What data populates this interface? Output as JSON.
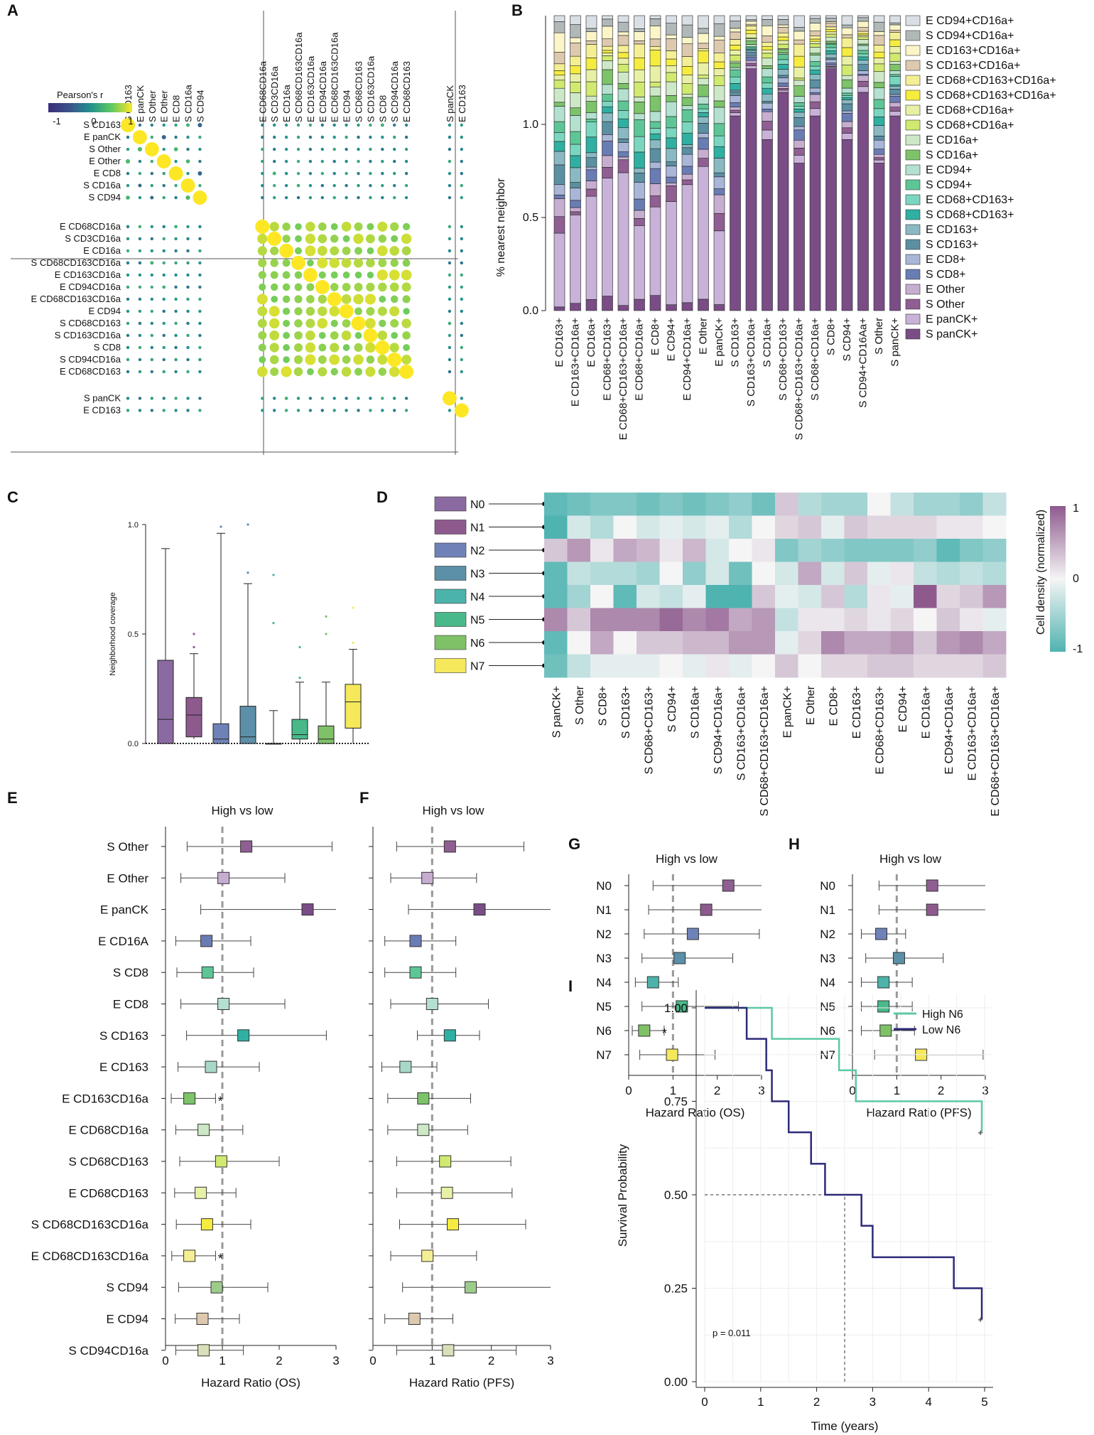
{
  "chart_data": [
    {
      "panel": "A",
      "type": "heatmap",
      "title": "Pearson's r",
      "colorbar": {
        "min": -1,
        "mid": 0,
        "max": 1,
        "tick_labels": [
          "-1",
          "0",
          "1"
        ]
      },
      "rows": [
        "S CD163",
        "E panCK",
        "S Other",
        "E Other",
        "E CD8",
        "S CD16a",
        "S CD94",
        "E CD68CD16a",
        "S CD3CD16a",
        "E CD16a",
        "S CD68CD163CD16a",
        "E CD163CD16a",
        "E CD94CD16a",
        "E CD68CD163CD16a",
        "E CD94",
        "S CD68CD163",
        "S CD163CD16a",
        "S CD8",
        "S CD94CD16a",
        "E CD68CD163",
        "S panCK",
        "E CD163"
      ],
      "columns": [
        "S CD163",
        "E panCK",
        "S Other",
        "E Other",
        "E CD8",
        "S CD16a",
        "S CD94",
        "E CD68CD16a",
        "S CD3CD16a",
        "E CD16a",
        "S CD68CD163CD16a",
        "E CD163CD16a",
        "E CD94CD16a",
        "E CD68CD163CD16a",
        "E CD94",
        "S CD68CD163",
        "S CD163CD16a",
        "S CD8",
        "S CD94CD16a",
        "E CD68CD163",
        "S panCK",
        "E CD163"
      ],
      "note": "Dot-matrix correlation; diagonal r = 1, block of macrophage/CD16a subsets strongly positively correlated"
    },
    {
      "panel": "B",
      "type": "bar",
      "stacked": true,
      "ylabel": "% nearest neighbor",
      "y_ticks": [
        "0.0",
        "0.5",
        "1.0"
      ],
      "categories": [
        "E CD163+",
        "E CD163+CD16a+",
        "E CD16a+",
        "E CD68+CD163+",
        "E CD68+CD163+CD16a+",
        "E CD68+CD16a+",
        "E CD8+",
        "E CD94+",
        "E CD94+CD16a+",
        "E Other",
        "E panCK+",
        "S CD163+",
        "S CD163+CD16a+",
        "S CD16a+",
        "S CD68+CD163+",
        "S CD68+CD163+CD16a+",
        "S CD68+CD16a+",
        "S CD8+",
        "S CD94+",
        "S CD94+CD16Aa+",
        "S Other",
        "S panCK+"
      ],
      "legend": [
        "E CD94+CD16a+",
        "S CD94+CD16a+",
        "E CD163+CD16a+",
        "S CD163+CD16a+",
        "E CD68+CD163+CD16a+",
        "S CD68+CD163+CD16a+",
        "E CD68+CD16a+",
        "S CD68+CD16a+",
        "E CD16a+",
        "S CD16a+",
        "E CD94+",
        "S CD94+",
        "E CD68+CD163+",
        "S CD68+CD163+",
        "E CD163+",
        "S CD163+",
        "E CD8+",
        "S CD8+",
        "E Other",
        "S Other",
        "E panCK+",
        "S panCK+"
      ]
    },
    {
      "panel": "C",
      "type": "box",
      "ylabel": "Neighborhood coverage",
      "y_ticks": [
        "0.0",
        "0.5",
        "1.0"
      ],
      "categories": [
        "N0",
        "N1",
        "N2",
        "N3",
        "N4",
        "N5",
        "N6",
        "N7"
      ],
      "boxes": [
        {
          "min": 0.0,
          "q1": 0.0,
          "median": 0.11,
          "q3": 0.38,
          "max": 0.89,
          "outliers": []
        },
        {
          "min": 0.02,
          "q1": 0.03,
          "median": 0.13,
          "q3": 0.21,
          "max": 0.41,
          "outliers": [
            0.44,
            0.5
          ]
        },
        {
          "min": 0.0,
          "q1": 0.0,
          "median": 0.02,
          "q3": 0.09,
          "max": 0.96,
          "outliers": [
            0.99
          ]
        },
        {
          "min": 0.0,
          "q1": 0.0,
          "median": 0.03,
          "q3": 0.17,
          "max": 0.73,
          "outliers": [
            0.78,
            1.0
          ]
        },
        {
          "min": 0.0,
          "q1": 0.0,
          "median": 0.0,
          "q3": 0.0,
          "max": 0.15,
          "outliers": [
            0.55,
            0.77
          ]
        },
        {
          "min": 0.0,
          "q1": 0.02,
          "median": 0.04,
          "q3": 0.11,
          "max": 0.28,
          "outliers": [
            0.3,
            0.44
          ]
        },
        {
          "min": 0.0,
          "q1": 0.0,
          "median": 0.02,
          "q3": 0.08,
          "max": 0.28,
          "outliers": [
            0.5,
            0.58
          ]
        },
        {
          "min": 0.0,
          "q1": 0.07,
          "median": 0.19,
          "q3": 0.27,
          "max": 0.43,
          "outliers": [
            0.46,
            0.62
          ]
        }
      ]
    },
    {
      "panel": "D",
      "type": "heatmap",
      "colorbar_label": "Cell density (normalized)",
      "colorbar_ticks": [
        "1",
        "0",
        "-1"
      ],
      "rows": [
        "N0",
        "N1",
        "N2",
        "N3",
        "N4",
        "N5",
        "N6",
        "N7"
      ],
      "columns": [
        "S panCK+",
        "S Other",
        "S CD8+",
        "S CD163+",
        "S CD68+CD163+",
        "S CD94+",
        "S CD16a+",
        "S CD94+CD16a+",
        "S CD163+CD16a+",
        "S CD68+CD163+CD16a+",
        "E panCK+",
        "E Other",
        "E CD8+",
        "E CD163+",
        "E CD68+CD163+",
        "E CD94+",
        "E CD16a+",
        "E CD94+CD16a+",
        "E CD163+CD16a+",
        "E CD68+CD163+CD16a+"
      ],
      "values": [
        [
          -0.9,
          -0.8,
          -0.7,
          -0.7,
          -0.8,
          -0.7,
          -0.8,
          -0.7,
          -0.6,
          -0.8,
          0.3,
          -0.4,
          -0.5,
          -0.5,
          0.0,
          -0.3,
          -0.5,
          -0.5,
          -0.6,
          -0.3
        ],
        [
          -1.0,
          -0.2,
          -0.4,
          0.0,
          -0.2,
          -0.1,
          -0.2,
          -0.1,
          -0.4,
          0.0,
          0.2,
          0.3,
          -0.1,
          0.3,
          0.2,
          0.2,
          0.2,
          0.1,
          0.1,
          0.0
        ],
        [
          0.3,
          0.6,
          0.1,
          0.5,
          0.4,
          0.1,
          0.4,
          -0.2,
          0.0,
          0.1,
          -0.7,
          -0.5,
          -0.6,
          -0.7,
          -0.7,
          -0.7,
          -0.6,
          -0.9,
          -0.7,
          -0.6
        ],
        [
          -0.9,
          -0.3,
          -0.4,
          -0.4,
          -0.5,
          0.0,
          -0.6,
          -0.2,
          -0.8,
          0.0,
          -0.2,
          0.5,
          -0.2,
          0.3,
          -0.1,
          0.1,
          -0.3,
          -0.4,
          -0.3,
          -0.4
        ],
        [
          -0.9,
          -0.5,
          0.0,
          -0.9,
          -0.2,
          -0.3,
          -0.1,
          -1.0,
          -1.0,
          0.3,
          -0.1,
          -0.2,
          0.3,
          -0.4,
          0.1,
          -0.1,
          1.0,
          0.2,
          0.3,
          0.6
        ],
        [
          0.7,
          0.3,
          0.7,
          0.7,
          0.7,
          0.9,
          0.7,
          0.8,
          0.5,
          0.6,
          -0.3,
          0.1,
          0.1,
          0.2,
          0.1,
          0.2,
          0.0,
          0.3,
          0.1,
          -0.1
        ],
        [
          -0.9,
          0.0,
          0.5,
          0.0,
          0.3,
          0.3,
          0.4,
          0.4,
          0.6,
          0.6,
          -0.1,
          0.2,
          0.7,
          0.5,
          0.5,
          0.6,
          0.3,
          0.6,
          0.7,
          0.5
        ],
        [
          -0.8,
          -0.3,
          -0.1,
          -0.1,
          -0.1,
          0.0,
          -0.1,
          0.1,
          -0.1,
          0.0,
          0.3,
          0.0,
          0.2,
          0.2,
          0.3,
          0.3,
          0.2,
          0.2,
          0.2,
          0.3
        ]
      ]
    },
    {
      "panel": "E",
      "type": "forest",
      "title": "High vs low",
      "xlabel": "Hazard Ratio (OS)",
      "xlim": [
        0,
        3
      ],
      "x_ticks": [
        "0",
        "1",
        "2",
        "3"
      ],
      "labels": [
        "S Other",
        "E Other",
        "E panCK",
        "E CD16A",
        "S CD8",
        "E CD8",
        "S CD163",
        "E CD163",
        "E CD163CD16a",
        "E CD68CD16a",
        "S CD68CD163",
        "E CD68CD163",
        "S CD68CD163CD16a",
        "E CD68CD163CD16a",
        "S CD94",
        "E CD94",
        "S CD94CD16a"
      ],
      "hr": [
        1.42,
        1.02,
        2.5,
        0.72,
        0.74,
        1.02,
        1.37,
        0.8,
        0.42,
        0.67,
        0.98,
        0.62,
        0.73,
        0.42,
        0.9,
        0.65,
        0.67
      ],
      "lower": [
        0.38,
        0.27,
        0.62,
        0.18,
        0.2,
        0.27,
        0.37,
        0.22,
        0.1,
        0.18,
        0.25,
        0.16,
        0.19,
        0.11,
        0.23,
        0.17,
        0.18
      ],
      "upper": [
        2.93,
        2.1,
        3.0,
        1.5,
        1.55,
        2.1,
        2.83,
        1.65,
        0.88,
        1.36,
        2.0,
        1.24,
        1.5,
        0.88,
        1.8,
        1.3,
        1.37
      ],
      "significance": [
        "",
        "",
        "",
        "",
        "",
        "",
        "",
        "",
        "*",
        "",
        "",
        "",
        "",
        "*",
        "",
        "",
        ""
      ]
    },
    {
      "panel": "F",
      "type": "forest",
      "title": "High vs low",
      "xlabel": "Hazard Ratio (PFS)",
      "xlim": [
        0,
        3
      ],
      "x_ticks": [
        "0",
        "1",
        "2",
        "3"
      ],
      "labels": [
        "S Other",
        "E Other",
        "E panCK",
        "E CD16A",
        "S CD8",
        "E CD8",
        "S CD163",
        "E CD163",
        "E CD163CD16a",
        "E CD68CD16a",
        "S CD68CD163",
        "E CD68CD163",
        "S CD68CD163CD16a",
        "E CD68CD163CD16a",
        "S CD94",
        "E CD94",
        "S CD94CD16a"
      ],
      "hr": [
        1.3,
        0.92,
        1.8,
        0.72,
        0.72,
        1.0,
        1.3,
        0.55,
        0.85,
        0.85,
        1.22,
        1.25,
        1.35,
        0.92,
        1.65,
        0.7,
        1.27
      ],
      "lower": [
        0.4,
        0.3,
        0.6,
        0.2,
        0.2,
        0.3,
        0.75,
        0.15,
        0.25,
        0.25,
        0.4,
        0.4,
        0.45,
        0.3,
        0.5,
        0.2,
        0.4
      ],
      "upper": [
        2.55,
        1.75,
        3.0,
        1.4,
        1.4,
        1.95,
        1.8,
        1.08,
        1.65,
        1.6,
        2.33,
        2.35,
        2.58,
        1.75,
        3.0,
        1.35,
        2.42
      ],
      "significance": [
        "",
        "",
        "",
        "",
        "",
        "",
        "",
        "",
        "",
        "",
        "",
        "",
        "",
        "",
        "",
        "",
        ""
      ]
    },
    {
      "panel": "G",
      "type": "forest",
      "title": "High vs low",
      "xlabel": "Hazard Ratio (OS)",
      "xlim": [
        0,
        3
      ],
      "x_ticks": [
        "0",
        "1",
        "2",
        "3"
      ],
      "labels": [
        "N0",
        "N1",
        "N2",
        "N3",
        "N4",
        "N5",
        "N6",
        "N7"
      ],
      "hr": [
        2.25,
        1.75,
        1.45,
        1.15,
        0.55,
        1.2,
        0.35,
        0.98
      ],
      "lower": [
        0.55,
        0.45,
        0.35,
        0.3,
        0.15,
        0.3,
        0.08,
        0.25
      ],
      "upper": [
        3.0,
        3.0,
        2.95,
        2.35,
        1.12,
        2.48,
        0.8,
        1.95
      ],
      "significance": [
        "",
        "",
        "",
        "",
        "",
        "",
        "*",
        ""
      ]
    },
    {
      "panel": "H",
      "type": "forest",
      "title": "High vs low",
      "xlabel": "Hazard Ratio (PFS)",
      "xlim": [
        0,
        3
      ],
      "x_ticks": [
        "0",
        "1",
        "2",
        "3"
      ],
      "labels": [
        "N0",
        "N1",
        "N2",
        "N3",
        "N4",
        "N5",
        "N6",
        "N7"
      ],
      "hr": [
        1.8,
        1.8,
        0.65,
        1.05,
        0.7,
        0.7,
        0.75,
        1.55
      ],
      "lower": [
        0.6,
        0.6,
        0.2,
        0.3,
        0.2,
        0.2,
        0.2,
        0.5
      ],
      "upper": [
        3.0,
        3.0,
        1.2,
        2.05,
        1.35,
        1.35,
        1.4,
        2.95
      ],
      "significance": [
        "",
        "",
        "",
        "",
        "",
        "",
        "",
        ""
      ]
    },
    {
      "panel": "I",
      "type": "line",
      "step": true,
      "xlabel": "Time (years)",
      "ylabel": "Survival Probability",
      "xlim": [
        0,
        5
      ],
      "ylim": [
        0,
        1
      ],
      "x_ticks": [
        "0",
        "1",
        "2",
        "3",
        "4",
        "5"
      ],
      "y_ticks": [
        "0.00",
        "0.25",
        "0.50",
        "0.75",
        "1.00"
      ],
      "annotation": "p = 0.011",
      "median_marker": {
        "x": 2.5,
        "y": 0.5
      },
      "series": [
        {
          "name": "High N6",
          "color": "#5cc9a0",
          "x": [
            0,
            1.2,
            1.2,
            2.4,
            2.4,
            2.7,
            2.7,
            4.95,
            4.95
          ],
          "y": [
            1,
            1,
            0.917,
            0.917,
            0.833,
            0.833,
            0.75,
            0.75,
            0.667
          ]
        },
        {
          "name": "Low N6",
          "color": "#2c2a78",
          "x": [
            0,
            0.75,
            0.75,
            1.1,
            1.1,
            1.2,
            1.2,
            1.5,
            1.5,
            1.9,
            1.9,
            2.15,
            2.15,
            2.8,
            2.8,
            3.0,
            3.0,
            4.45,
            4.45,
            4.95,
            4.95
          ],
          "y": [
            1,
            1,
            0.917,
            0.917,
            0.833,
            0.833,
            0.75,
            0.75,
            0.667,
            0.667,
            0.583,
            0.583,
            0.5,
            0.5,
            0.417,
            0.417,
            0.333,
            0.333,
            0.25,
            0.25,
            0.167
          ]
        }
      ]
    }
  ],
  "panel_letters": [
    "A",
    "B",
    "C",
    "D",
    "E",
    "F",
    "G",
    "H",
    "I"
  ]
}
